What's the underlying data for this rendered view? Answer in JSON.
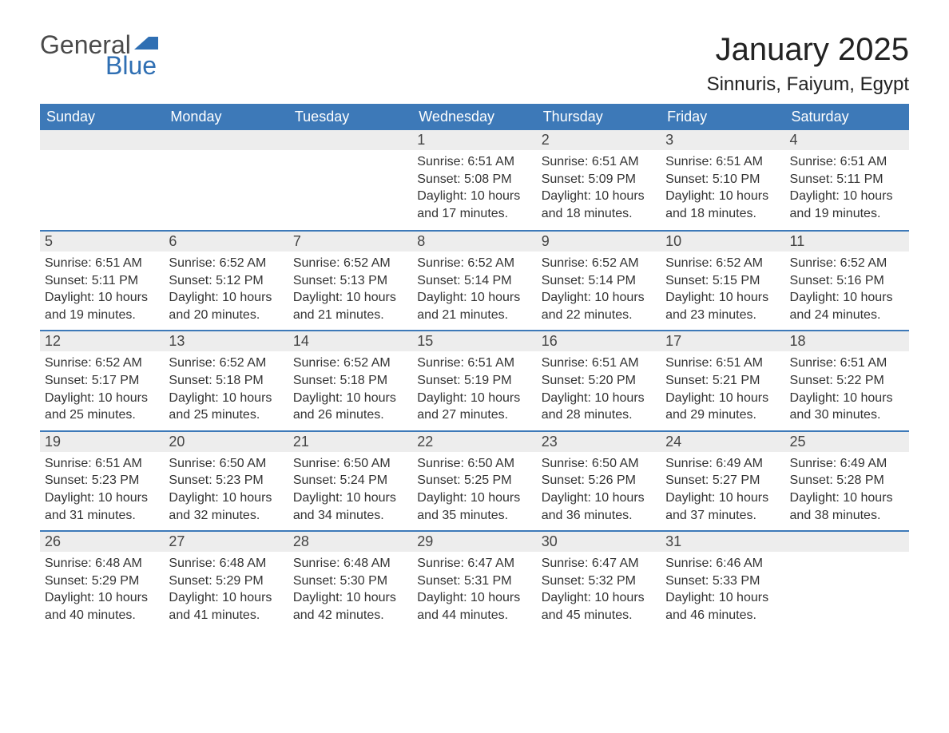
{
  "logo": {
    "text1": "General",
    "text2": "Blue",
    "flag_color": "#2f6fb3"
  },
  "title": "January 2025",
  "location": "Sinnuris, Faiyum, Egypt",
  "colors": {
    "header_bg": "#3d79b8",
    "header_text": "#ffffff",
    "daynum_bg": "#ededed",
    "border": "#3d79b8",
    "body_text": "#333333",
    "page_bg": "#ffffff"
  },
  "dow": [
    "Sunday",
    "Monday",
    "Tuesday",
    "Wednesday",
    "Thursday",
    "Friday",
    "Saturday"
  ],
  "weeks": [
    [
      null,
      null,
      null,
      {
        "n": "1",
        "sunrise": "6:51 AM",
        "sunset": "5:08 PM",
        "daylight": "10 hours and 17 minutes."
      },
      {
        "n": "2",
        "sunrise": "6:51 AM",
        "sunset": "5:09 PM",
        "daylight": "10 hours and 18 minutes."
      },
      {
        "n": "3",
        "sunrise": "6:51 AM",
        "sunset": "5:10 PM",
        "daylight": "10 hours and 18 minutes."
      },
      {
        "n": "4",
        "sunrise": "6:51 AM",
        "sunset": "5:11 PM",
        "daylight": "10 hours and 19 minutes."
      }
    ],
    [
      {
        "n": "5",
        "sunrise": "6:51 AM",
        "sunset": "5:11 PM",
        "daylight": "10 hours and 19 minutes."
      },
      {
        "n": "6",
        "sunrise": "6:52 AM",
        "sunset": "5:12 PM",
        "daylight": "10 hours and 20 minutes."
      },
      {
        "n": "7",
        "sunrise": "6:52 AM",
        "sunset": "5:13 PM",
        "daylight": "10 hours and 21 minutes."
      },
      {
        "n": "8",
        "sunrise": "6:52 AM",
        "sunset": "5:14 PM",
        "daylight": "10 hours and 21 minutes."
      },
      {
        "n": "9",
        "sunrise": "6:52 AM",
        "sunset": "5:14 PM",
        "daylight": "10 hours and 22 minutes."
      },
      {
        "n": "10",
        "sunrise": "6:52 AM",
        "sunset": "5:15 PM",
        "daylight": "10 hours and 23 minutes."
      },
      {
        "n": "11",
        "sunrise": "6:52 AM",
        "sunset": "5:16 PM",
        "daylight": "10 hours and 24 minutes."
      }
    ],
    [
      {
        "n": "12",
        "sunrise": "6:52 AM",
        "sunset": "5:17 PM",
        "daylight": "10 hours and 25 minutes."
      },
      {
        "n": "13",
        "sunrise": "6:52 AM",
        "sunset": "5:18 PM",
        "daylight": "10 hours and 25 minutes."
      },
      {
        "n": "14",
        "sunrise": "6:52 AM",
        "sunset": "5:18 PM",
        "daylight": "10 hours and 26 minutes."
      },
      {
        "n": "15",
        "sunrise": "6:51 AM",
        "sunset": "5:19 PM",
        "daylight": "10 hours and 27 minutes."
      },
      {
        "n": "16",
        "sunrise": "6:51 AM",
        "sunset": "5:20 PM",
        "daylight": "10 hours and 28 minutes."
      },
      {
        "n": "17",
        "sunrise": "6:51 AM",
        "sunset": "5:21 PM",
        "daylight": "10 hours and 29 minutes."
      },
      {
        "n": "18",
        "sunrise": "6:51 AM",
        "sunset": "5:22 PM",
        "daylight": "10 hours and 30 minutes."
      }
    ],
    [
      {
        "n": "19",
        "sunrise": "6:51 AM",
        "sunset": "5:23 PM",
        "daylight": "10 hours and 31 minutes."
      },
      {
        "n": "20",
        "sunrise": "6:50 AM",
        "sunset": "5:23 PM",
        "daylight": "10 hours and 32 minutes."
      },
      {
        "n": "21",
        "sunrise": "6:50 AM",
        "sunset": "5:24 PM",
        "daylight": "10 hours and 34 minutes."
      },
      {
        "n": "22",
        "sunrise": "6:50 AM",
        "sunset": "5:25 PM",
        "daylight": "10 hours and 35 minutes."
      },
      {
        "n": "23",
        "sunrise": "6:50 AM",
        "sunset": "5:26 PM",
        "daylight": "10 hours and 36 minutes."
      },
      {
        "n": "24",
        "sunrise": "6:49 AM",
        "sunset": "5:27 PM",
        "daylight": "10 hours and 37 minutes."
      },
      {
        "n": "25",
        "sunrise": "6:49 AM",
        "sunset": "5:28 PM",
        "daylight": "10 hours and 38 minutes."
      }
    ],
    [
      {
        "n": "26",
        "sunrise": "6:48 AM",
        "sunset": "5:29 PM",
        "daylight": "10 hours and 40 minutes."
      },
      {
        "n": "27",
        "sunrise": "6:48 AM",
        "sunset": "5:29 PM",
        "daylight": "10 hours and 41 minutes."
      },
      {
        "n": "28",
        "sunrise": "6:48 AM",
        "sunset": "5:30 PM",
        "daylight": "10 hours and 42 minutes."
      },
      {
        "n": "29",
        "sunrise": "6:47 AM",
        "sunset": "5:31 PM",
        "daylight": "10 hours and 44 minutes."
      },
      {
        "n": "30",
        "sunrise": "6:47 AM",
        "sunset": "5:32 PM",
        "daylight": "10 hours and 45 minutes."
      },
      {
        "n": "31",
        "sunrise": "6:46 AM",
        "sunset": "5:33 PM",
        "daylight": "10 hours and 46 minutes."
      },
      null
    ]
  ],
  "labels": {
    "sunrise": "Sunrise: ",
    "sunset": "Sunset: ",
    "daylight": "Daylight: "
  }
}
